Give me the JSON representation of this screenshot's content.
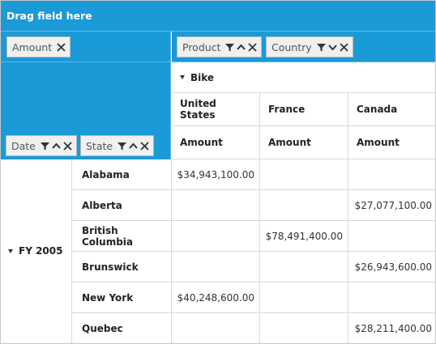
{
  "drag_area": {
    "label": "Drag field here"
  },
  "values_area": {
    "chip": "Amount"
  },
  "columns_area": {
    "chips": [
      "Product",
      "Country"
    ]
  },
  "rows_area": {
    "chips": [
      "Date",
      "State"
    ]
  },
  "column_headers": {
    "product": "Bike",
    "countries": [
      "United States",
      "France",
      "Canada"
    ],
    "measures": [
      "Amount",
      "Amount",
      "Amount"
    ]
  },
  "row_group": {
    "label": "FY 2005"
  },
  "rows": [
    {
      "state": "Alabama",
      "values": [
        "$34,943,100.00",
        "",
        ""
      ]
    },
    {
      "state": "Alberta",
      "values": [
        "",
        "",
        "$27,077,100.00"
      ]
    },
    {
      "state": "British Columbia",
      "values": [
        "",
        "$78,491,400.00",
        ""
      ]
    },
    {
      "state": "Brunswick",
      "values": [
        "",
        "",
        "$26,943,600.00"
      ]
    },
    {
      "state": "New York",
      "values": [
        "$40,248,600.00",
        "",
        ""
      ]
    },
    {
      "state": "Quebec",
      "values": [
        "",
        "",
        "$28,211,400.00"
      ]
    }
  ],
  "colors": {
    "accent": "#1b9ad8",
    "chip_bg": "#f0f0f0",
    "grid_line": "#d9d9d9"
  }
}
